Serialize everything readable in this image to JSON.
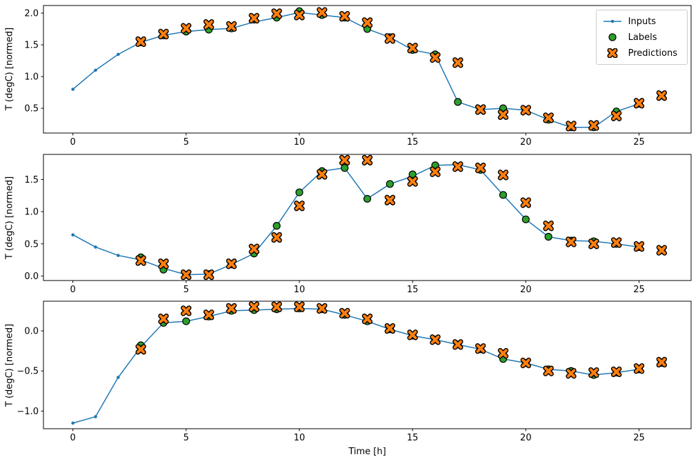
{
  "figure": {
    "xlabel": "Time [h]",
    "colors": {
      "inputs": "#1f77b4",
      "labels": "#2ca02c",
      "predictions": "#ff7f0e",
      "marker_edge": "#000000",
      "axes": "#000000",
      "background": "#ffffff"
    },
    "legend": {
      "position": "upper right",
      "items": [
        {
          "label": "Inputs",
          "marker": "line-dot-icon"
        },
        {
          "label": "Labels",
          "marker": "circle-icon"
        },
        {
          "label": "Predictions",
          "marker": "x-icon"
        }
      ]
    }
  },
  "chart_data": [
    {
      "type": "line",
      "subplot": 1,
      "ylabel": "T (degC) [normed]",
      "xlim": [
        -1.3,
        27.3
      ],
      "ylim": [
        0.11,
        2.12
      ],
      "xticks": [
        0,
        5,
        10,
        15,
        20,
        25
      ],
      "yticks": [
        0.5,
        1.0,
        1.5,
        2.0
      ],
      "grid": false,
      "series": [
        {
          "name": "Inputs",
          "style": "line+dot",
          "x": [
            0,
            1,
            2,
            3,
            4,
            5,
            6,
            7,
            8,
            9,
            10,
            11,
            12,
            13,
            14,
            15,
            16,
            17,
            18,
            19,
            20,
            21,
            22,
            23,
            24,
            25
          ],
          "y": [
            0.8,
            1.1,
            1.35,
            1.54,
            1.65,
            1.71,
            1.74,
            1.76,
            1.86,
            1.93,
            2.01,
            1.97,
            1.93,
            1.75,
            1.62,
            1.42,
            1.35,
            0.6,
            0.48,
            0.5,
            0.47,
            0.32,
            0.2,
            0.2,
            0.45,
            0.57
          ]
        },
        {
          "name": "Labels",
          "style": "scatter-circle",
          "x": [
            3,
            4,
            5,
            6,
            7,
            8,
            9,
            10,
            11,
            12,
            13,
            14,
            15,
            16,
            17,
            18,
            19,
            20,
            21,
            22,
            23,
            24,
            25,
            26
          ],
          "y": [
            1.54,
            1.65,
            1.71,
            1.74,
            1.76,
            1.9,
            1.93,
            2.03,
            1.97,
            1.93,
            1.75,
            1.62,
            1.42,
            1.35,
            0.6,
            0.48,
            0.5,
            0.47,
            0.32,
            0.2,
            0.2,
            0.45,
            0.57,
            0.7
          ]
        },
        {
          "name": "Predictions",
          "style": "scatter-x",
          "x": [
            3,
            4,
            5,
            6,
            7,
            8,
            9,
            10,
            11,
            12,
            13,
            14,
            15,
            16,
            17,
            18,
            19,
            20,
            21,
            22,
            23,
            24,
            25,
            26
          ],
          "y": [
            1.55,
            1.67,
            1.76,
            1.82,
            1.79,
            1.92,
            1.99,
            1.97,
            2.01,
            1.95,
            1.85,
            1.6,
            1.45,
            1.3,
            1.22,
            0.48,
            0.4,
            0.47,
            0.35,
            0.22,
            0.23,
            0.38,
            0.58,
            0.7
          ]
        }
      ]
    },
    {
      "type": "line",
      "subplot": 2,
      "ylabel": "T (degC) [normed]",
      "xlim": [
        -1.3,
        27.3
      ],
      "ylim": [
        -0.07,
        1.89
      ],
      "xticks": [
        0,
        5,
        10,
        15,
        20,
        25
      ],
      "yticks": [
        0.0,
        0.5,
        1.0,
        1.5
      ],
      "grid": false,
      "series": [
        {
          "name": "Inputs",
          "style": "line+dot",
          "x": [
            0,
            1,
            2,
            3,
            4,
            5,
            6,
            7,
            8,
            9,
            10,
            11,
            12,
            13,
            14,
            15,
            16,
            17,
            18,
            19,
            20,
            21,
            22,
            23,
            24,
            25
          ],
          "y": [
            0.64,
            0.45,
            0.32,
            0.25,
            0.12,
            0.02,
            0.03,
            0.18,
            0.35,
            0.78,
            1.3,
            1.63,
            1.68,
            1.2,
            1.43,
            1.55,
            1.72,
            1.73,
            1.65,
            1.26,
            0.88,
            0.61,
            0.55,
            0.54,
            0.5,
            0.45
          ]
        },
        {
          "name": "Labels",
          "style": "scatter-circle",
          "x": [
            3,
            4,
            5,
            6,
            7,
            8,
            9,
            10,
            11,
            12,
            13,
            14,
            15,
            16,
            17,
            18,
            19,
            20,
            21,
            22,
            23,
            24,
            25,
            26
          ],
          "y": [
            0.29,
            0.1,
            0.02,
            0.03,
            0.18,
            0.35,
            0.78,
            1.3,
            1.63,
            1.68,
            1.2,
            1.43,
            1.58,
            1.72,
            1.7,
            1.65,
            1.26,
            0.88,
            0.61,
            0.55,
            0.54,
            0.5,
            0.45,
            0.4
          ]
        },
        {
          "name": "Predictions",
          "style": "scatter-x",
          "x": [
            3,
            4,
            5,
            6,
            7,
            8,
            9,
            10,
            11,
            12,
            13,
            14,
            15,
            16,
            17,
            18,
            19,
            20,
            21,
            22,
            23,
            24,
            25,
            26
          ],
          "y": [
            0.24,
            0.19,
            0.02,
            0.02,
            0.19,
            0.42,
            0.6,
            1.09,
            1.58,
            1.8,
            1.8,
            1.18,
            1.47,
            1.62,
            1.7,
            1.68,
            1.57,
            1.14,
            0.78,
            0.53,
            0.5,
            0.52,
            0.46,
            0.4
          ]
        }
      ]
    },
    {
      "type": "line",
      "subplot": 3,
      "ylabel": "T (degC) [normed]",
      "xlabel": "Time [h]",
      "xlim": [
        -1.3,
        27.3
      ],
      "ylim": [
        -1.22,
        0.37
      ],
      "xticks": [
        0,
        5,
        10,
        15,
        20,
        25
      ],
      "yticks": [
        -1.0,
        -0.5,
        0.0
      ],
      "grid": false,
      "series": [
        {
          "name": "Inputs",
          "style": "line+dot",
          "x": [
            0,
            1,
            2,
            3,
            4,
            5,
            6,
            7,
            8,
            9,
            10,
            11,
            12,
            13,
            14,
            15,
            16,
            17,
            18,
            19,
            20,
            21,
            22,
            23,
            24,
            25
          ],
          "y": [
            -1.15,
            -1.07,
            -0.58,
            -0.2,
            0.1,
            0.12,
            0.18,
            0.25,
            0.26,
            0.27,
            0.28,
            0.27,
            0.2,
            0.12,
            0.02,
            -0.06,
            -0.11,
            -0.17,
            -0.23,
            -0.35,
            -0.4,
            -0.48,
            -0.5,
            -0.55,
            -0.52,
            -0.48
          ]
        },
        {
          "name": "Labels",
          "style": "scatter-circle",
          "x": [
            3,
            4,
            5,
            6,
            7,
            8,
            9,
            10,
            11,
            12,
            13,
            14,
            15,
            16,
            17,
            18,
            19,
            20,
            21,
            22,
            23,
            24,
            25,
            26
          ],
          "y": [
            -0.18,
            0.1,
            0.12,
            0.18,
            0.25,
            0.26,
            0.27,
            0.28,
            0.27,
            0.2,
            0.12,
            0.02,
            -0.06,
            -0.11,
            -0.17,
            -0.23,
            -0.35,
            -0.4,
            -0.48,
            -0.5,
            -0.55,
            -0.52,
            -0.48,
            -0.4
          ]
        },
        {
          "name": "Predictions",
          "style": "scatter-x",
          "x": [
            3,
            4,
            5,
            6,
            7,
            8,
            9,
            10,
            11,
            12,
            13,
            14,
            15,
            16,
            17,
            18,
            19,
            20,
            21,
            22,
            23,
            24,
            25,
            26
          ],
          "y": [
            -0.23,
            0.15,
            0.25,
            0.2,
            0.28,
            0.3,
            0.3,
            0.3,
            0.28,
            0.22,
            0.15,
            0.03,
            -0.05,
            -0.11,
            -0.17,
            -0.22,
            -0.28,
            -0.4,
            -0.5,
            -0.53,
            -0.52,
            -0.51,
            -0.47,
            -0.39
          ]
        }
      ]
    }
  ]
}
